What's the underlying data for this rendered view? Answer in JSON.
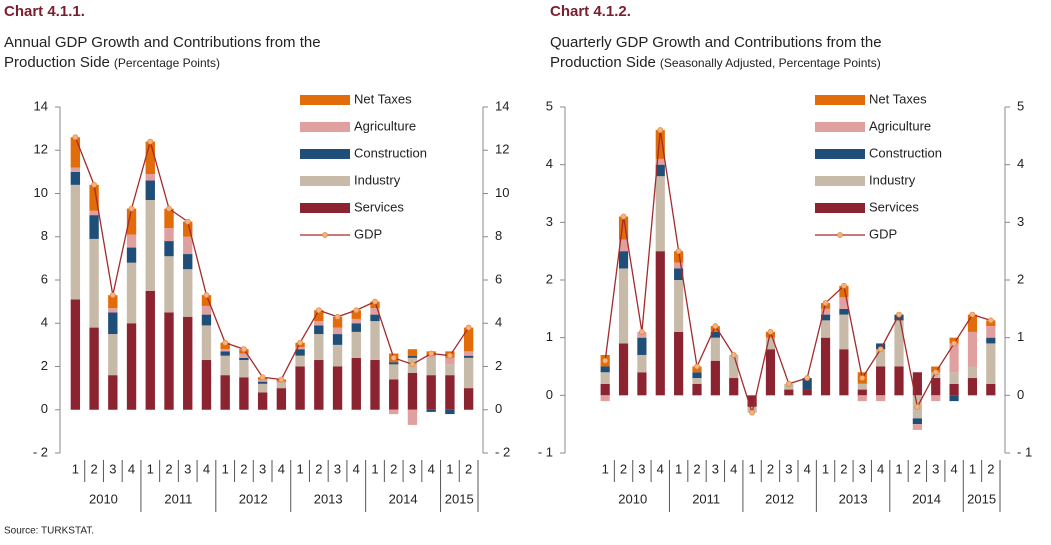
{
  "source": "Source: TURKSTAT.",
  "chart_data": [
    {
      "type": "bar",
      "title": "Chart 4.1.1.",
      "subtitle": "Annual GDP Growth and Contributions from the",
      "subtitle2": "Production Side",
      "subtitle_note": "(Percentage Points)",
      "categories": [
        "1",
        "2",
        "3",
        "4",
        "1",
        "2",
        "3",
        "4",
        "1",
        "2",
        "3",
        "4",
        "1",
        "2",
        "3",
        "4",
        "1",
        "2",
        "3",
        "4",
        "1",
        "2"
      ],
      "years": [
        "2010",
        "2011",
        "2012",
        "2013",
        "2014",
        "2015"
      ],
      "ylim": [
        -2,
        14
      ],
      "yticks": [
        {
          "value": -2,
          "label": "- 2"
        },
        0,
        2,
        4,
        6,
        8,
        10,
        12,
        14
      ],
      "series": [
        {
          "name": "Services",
          "color": "#8b2331",
          "values": [
            5.1,
            3.8,
            1.6,
            4.0,
            5.5,
            4.5,
            4.3,
            2.3,
            1.6,
            1.5,
            0.8,
            1.0,
            2.0,
            2.3,
            2.0,
            2.4,
            2.3,
            1.4,
            1.7,
            1.6,
            1.6,
            1.0
          ]
        },
        {
          "name": "Industry",
          "color": "#c8baa9",
          "values": [
            5.3,
            4.1,
            1.9,
            2.8,
            4.2,
            2.6,
            2.2,
            1.6,
            0.9,
            0.8,
            0.4,
            0.2,
            0.5,
            1.2,
            1.0,
            1.2,
            1.8,
            0.7,
            0.7,
            0.8,
            0.5,
            1.4
          ]
        },
        {
          "name": "Construction",
          "color": "#1f4e79",
          "values": [
            0.6,
            1.1,
            1.0,
            0.7,
            0.9,
            0.7,
            0.7,
            0.5,
            0.2,
            0.1,
            0.1,
            0.0,
            0.3,
            0.4,
            0.5,
            0.4,
            0.3,
            0.1,
            0.1,
            -0.1,
            -0.2,
            0.1
          ]
        },
        {
          "name": "Agriculture",
          "color": "#e0a0a0",
          "values": [
            0.2,
            0.2,
            0.2,
            0.6,
            0.3,
            0.6,
            0.8,
            0.4,
            0.1,
            0.2,
            0.1,
            0.1,
            0.1,
            0.2,
            0.3,
            0.2,
            0.3,
            -0.2,
            -0.7,
            0.1,
            0.3,
            0.2
          ]
        },
        {
          "name": "Net Taxes",
          "color": "#e36c0a",
          "values": [
            1.4,
            1.2,
            0.6,
            1.2,
            1.5,
            0.9,
            0.7,
            0.5,
            0.3,
            0.2,
            0.1,
            0.1,
            0.2,
            0.5,
            0.5,
            0.4,
            0.3,
            0.4,
            0.3,
            0.2,
            0.3,
            1.1
          ]
        }
      ],
      "line_series": {
        "name": "GDP",
        "color": "#a52a2a",
        "marker_color": "#f4b183",
        "values": [
          12.6,
          10.4,
          5.3,
          9.3,
          12.4,
          9.3,
          8.7,
          5.3,
          3.1,
          2.8,
          1.5,
          1.4,
          3.1,
          4.6,
          4.3,
          4.6,
          5.0,
          2.4,
          2.1,
          2.6,
          2.5,
          3.8
        ]
      }
    },
    {
      "type": "bar",
      "title": "Chart 4.1.2.",
      "subtitle": "Quarterly GDP Growth and Contributions from the",
      "subtitle2": "Production Side",
      "subtitle_note": "(Seasonally Adjusted, Percentage Points)",
      "categories": [
        "1",
        "2",
        "3",
        "4",
        "1",
        "2",
        "3",
        "4",
        "1",
        "2",
        "3",
        "4",
        "1",
        "2",
        "3",
        "4",
        "1",
        "2",
        "3",
        "4",
        "1",
        "2"
      ],
      "years": [
        "2010",
        "2011",
        "2012",
        "2013",
        "2014",
        "2015"
      ],
      "ylim": [
        -1,
        5
      ],
      "yticks": [
        {
          "value": -1,
          "label": "- 1"
        },
        0,
        1,
        2,
        3,
        4,
        5
      ],
      "series": [
        {
          "name": "Services",
          "color": "#8b2331",
          "values": [
            0.2,
            0.9,
            0.4,
            2.5,
            1.1,
            0.2,
            0.6,
            0.3,
            -0.2,
            0.8,
            0.1,
            0.1,
            1.0,
            0.8,
            0.1,
            0.5,
            0.5,
            0.4,
            0.3,
            0.2,
            0.3,
            0.2
          ]
        },
        {
          "name": "Industry",
          "color": "#c8baa9",
          "values": [
            0.2,
            1.3,
            0.3,
            1.3,
            0.9,
            0.1,
            0.4,
            0.4,
            -0.1,
            0.2,
            0.1,
            0.0,
            0.3,
            0.6,
            0.1,
            0.3,
            0.8,
            -0.4,
            0.1,
            0.2,
            0.2,
            0.7
          ]
        },
        {
          "name": "Construction",
          "color": "#1f4e79",
          "values": [
            0.1,
            0.3,
            0.3,
            0.2,
            0.2,
            0.1,
            0.1,
            0.0,
            0.0,
            0.0,
            0.0,
            0.2,
            0.1,
            0.1,
            0.0,
            0.1,
            0.1,
            -0.1,
            0.0,
            -0.1,
            0.0,
            0.1
          ]
        },
        {
          "name": "Agriculture",
          "color": "#e0a0a0",
          "values": [
            -0.1,
            0.2,
            0.1,
            0.1,
            0.1,
            0.0,
            0.0,
            0.0,
            0.0,
            0.0,
            0.0,
            0.0,
            0.1,
            0.2,
            -0.1,
            -0.1,
            0.0,
            -0.1,
            -0.1,
            0.5,
            0.6,
            0.2
          ]
        },
        {
          "name": "Net Taxes",
          "color": "#e36c0a",
          "values": [
            0.2,
            0.4,
            0.0,
            0.5,
            0.2,
            0.1,
            0.1,
            0.0,
            0.0,
            0.1,
            0.0,
            0.0,
            0.1,
            0.2,
            0.2,
            0.0,
            0.0,
            0.0,
            0.1,
            0.1,
            0.3,
            0.1
          ]
        }
      ],
      "line_series": {
        "name": "GDP",
        "color": "#a52a2a",
        "marker_color": "#f4b183",
        "values": [
          0.6,
          3.1,
          1.1,
          4.6,
          2.5,
          0.5,
          1.2,
          0.7,
          -0.3,
          1.1,
          0.2,
          0.3,
          1.6,
          1.9,
          0.3,
          0.8,
          1.4,
          -0.2,
          0.4,
          0.9,
          1.4,
          1.3
        ]
      }
    }
  ]
}
